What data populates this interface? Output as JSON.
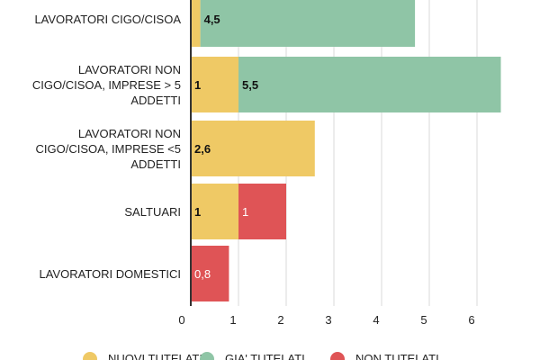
{
  "chart_data": {
    "type": "bar",
    "orientation": "horizontal",
    "stacked": true,
    "categories": [
      "LAVORATORI CIGO/CISOA",
      "LAVORATORI NON CIGO/CISOA, IMPRESE > 5 ADDETTI",
      "LAVORATORI NON CIGO/CISOA, IMPRESE <5 ADDETTI",
      "SALTUARI",
      "LAVORATORI DOMESTICI"
    ],
    "series": [
      {
        "name": "NUOVI TUTELATI",
        "color": "#efc965",
        "values": [
          0.2,
          1,
          2.6,
          1,
          0
        ],
        "labels": [
          "",
          "1",
          "2,6",
          "1",
          ""
        ]
      },
      {
        "name": "GIA' TUTELATI",
        "color": "#8fc5a6",
        "values": [
          4.5,
          5.5,
          0,
          0,
          0
        ],
        "labels": [
          "4,5",
          "5,5",
          "",
          "",
          ""
        ]
      },
      {
        "name": "NON TUTELATI",
        "color": "#df5456",
        "values": [
          0,
          0,
          0,
          1,
          0.8
        ],
        "labels": [
          "",
          "",
          "",
          "1",
          "0,8"
        ]
      }
    ],
    "xlim": [
      0,
      6.6
    ],
    "xticks": [
      "0",
      "1",
      "2",
      "3",
      "4",
      "5",
      "6"
    ],
    "grid": true,
    "legend_position": "bottom"
  }
}
